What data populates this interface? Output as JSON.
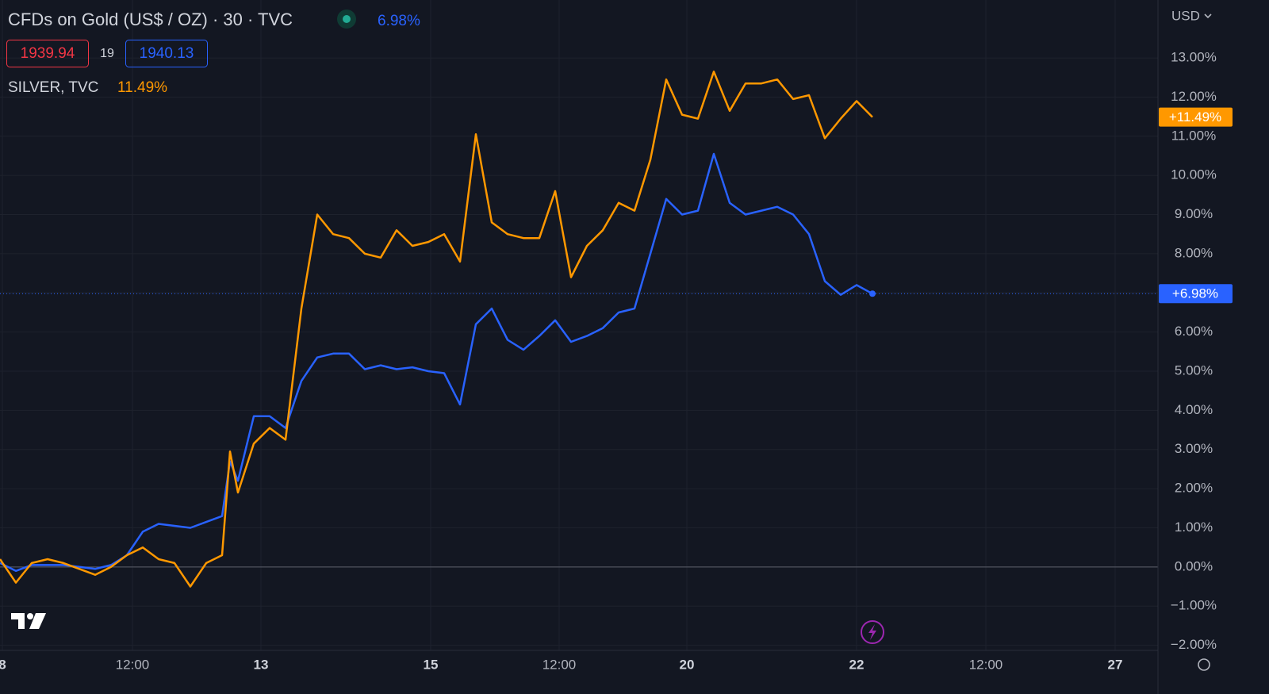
{
  "chart_data": {
    "type": "line",
    "currency": "USD",
    "bid": 1939.94,
    "spread": 19,
    "ask": 1940.13,
    "x": [
      0,
      1,
      2,
      3,
      4,
      5,
      6,
      7,
      8,
      9,
      10,
      11,
      12,
      13,
      14,
      14.5,
      15,
      16,
      17,
      18,
      19,
      20,
      21,
      22,
      23,
      24,
      25,
      26,
      27,
      28,
      29,
      30,
      31,
      32,
      33,
      34,
      35,
      36,
      37,
      38,
      39,
      40,
      41,
      42,
      43,
      44,
      45,
      46,
      47,
      48,
      49,
      50,
      51,
      52,
      53,
      54,
      55
    ],
    "xlim": [
      0,
      73
    ],
    "xticks": [
      {
        "value": 0.15,
        "label": "8"
      },
      {
        "value": 8.35,
        "label": "12:00"
      },
      {
        "value": 16.45,
        "label": "13"
      },
      {
        "value": 27.15,
        "label": "15"
      },
      {
        "value": 35.25,
        "label": "12:00"
      },
      {
        "value": 43.3,
        "label": "20"
      },
      {
        "value": 54,
        "label": "22"
      },
      {
        "value": 62.15,
        "label": "12:00"
      },
      {
        "value": 70.3,
        "label": "27"
      }
    ],
    "ylim": [
      -2.13,
      14.48
    ],
    "yticks": [
      {
        "value": -2,
        "label": "−2.00%"
      },
      {
        "value": -1,
        "label": "−1.00%"
      },
      {
        "value": 0,
        "label": "0.00%"
      },
      {
        "value": 1,
        "label": "1.00%"
      },
      {
        "value": 2,
        "label": "2.00%"
      },
      {
        "value": 3,
        "label": "3.00%"
      },
      {
        "value": 4,
        "label": "4.00%"
      },
      {
        "value": 5,
        "label": "5.00%"
      },
      {
        "value": 6,
        "label": "6.00%"
      },
      {
        "value": 7,
        "label": "7.00%"
      },
      {
        "value": 8,
        "label": "8.00%"
      },
      {
        "value": 9,
        "label": "9.00%"
      },
      {
        "value": 10,
        "label": "10.00%"
      },
      {
        "value": 11,
        "label": "11.00%"
      },
      {
        "value": 12,
        "label": "12.00%"
      },
      {
        "value": 13,
        "label": "13.00%"
      }
    ],
    "grid": true,
    "series": [
      {
        "name": "CFDs on Gold (US$ / OZ) · 30 · TVC",
        "color": "#2962ff",
        "last_label": "6.98%",
        "badge_label": "+6.98%",
        "values": [
          0.1,
          -0.1,
          0.05,
          0.05,
          0.05,
          0,
          -0.05,
          0.05,
          0.3,
          0.9,
          1.1,
          1.05,
          1.0,
          1.15,
          1.3,
          2.7,
          2.2,
          3.85,
          3.85,
          3.55,
          4.75,
          5.35,
          5.45,
          5.45,
          5.05,
          5.15,
          5.05,
          5.1,
          5.0,
          4.95,
          4.15,
          6.2,
          6.6,
          5.8,
          5.55,
          5.9,
          6.3,
          5.75,
          5.9,
          6.1,
          6.5,
          6.6,
          8.0,
          9.4,
          9.0,
          9.1,
          10.55,
          9.3,
          9.0,
          9.1,
          9.2,
          9.0,
          8.5,
          7.3,
          6.95,
          7.2,
          6.98
        ]
      },
      {
        "name": "SILVER, TVC",
        "color": "#ff9800",
        "last_label": "11.49%",
        "badge_label": "+11.49%",
        "values": [
          0.2,
          -0.4,
          0.1,
          0.2,
          0.1,
          -0.05,
          -0.2,
          0,
          0.3,
          0.5,
          0.2,
          0.1,
          -0.5,
          0.1,
          0.3,
          2.95,
          1.9,
          3.15,
          3.55,
          3.25,
          6.6,
          9.0,
          8.5,
          8.4,
          8.0,
          7.9,
          8.6,
          8.2,
          8.3,
          8.5,
          7.8,
          11.05,
          8.8,
          8.5,
          8.4,
          8.4,
          9.6,
          7.4,
          8.2,
          8.6,
          9.3,
          9.1,
          10.4,
          12.45,
          11.55,
          11.45,
          12.65,
          11.65,
          12.35,
          12.35,
          12.45,
          11.95,
          12.05,
          10.95,
          11.45,
          11.9,
          11.49
        ]
      }
    ]
  }
}
